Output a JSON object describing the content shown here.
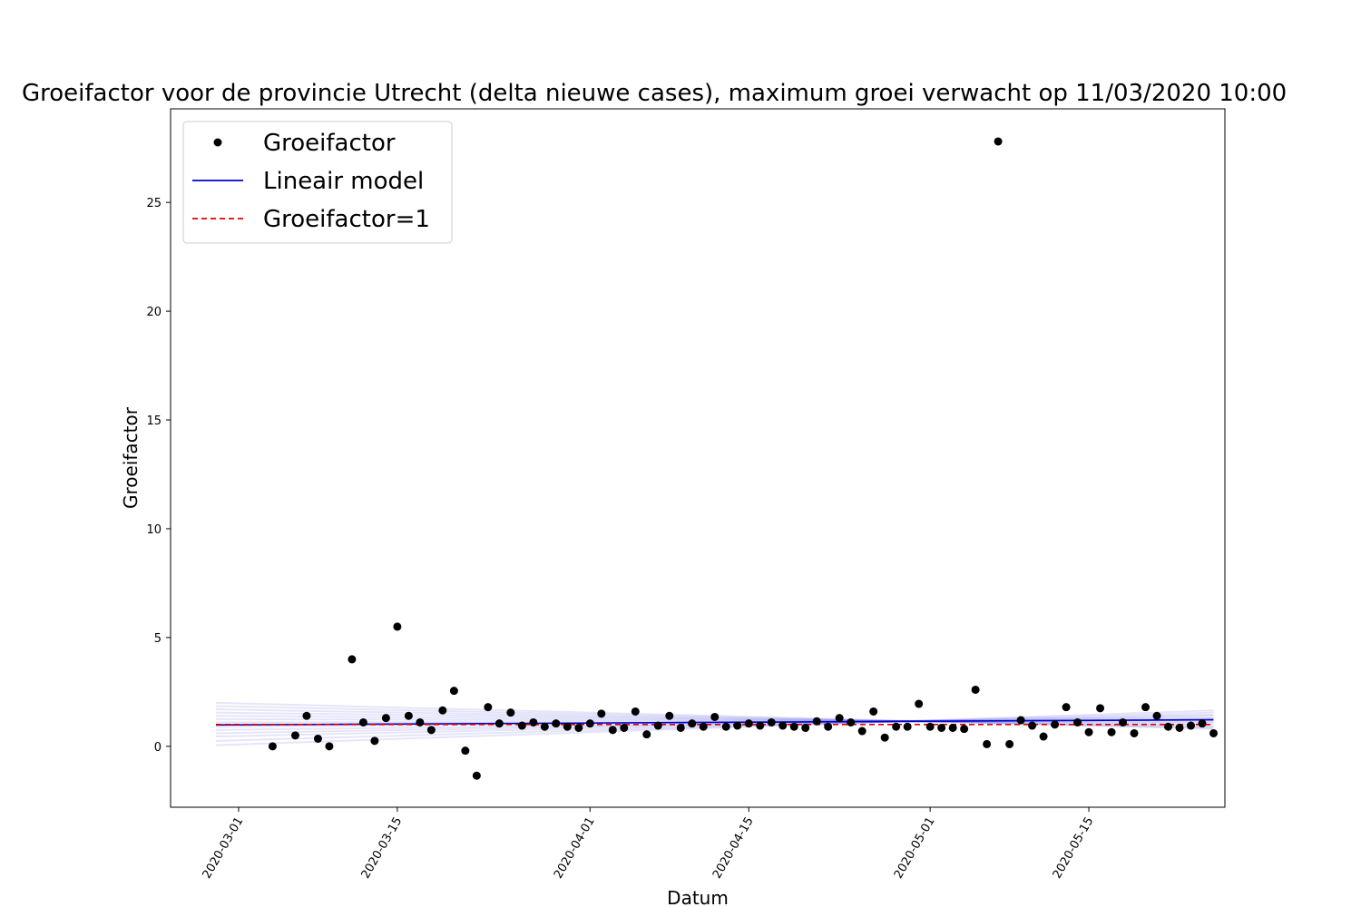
{
  "chart_data": {
    "type": "scatter",
    "title": "Groeifactor voor de provincie Utrecht (delta nieuwe cases), maximum groei verwacht op 11/03/2020 10:00",
    "xlabel": "Datum",
    "ylabel": "Groeifactor",
    "xlim": [
      "2020-02-24",
      "2020-05-27"
    ],
    "ylim": [
      -2.8,
      29.3
    ],
    "xticks": [
      "2020-03-01",
      "2020-03-15",
      "2020-04-01",
      "2020-04-15",
      "2020-05-01",
      "2020-05-15"
    ],
    "yticks": [
      0,
      5,
      10,
      15,
      20,
      25
    ],
    "grid": false,
    "legend": {
      "position": "top-left",
      "entries": [
        {
          "label": "Groeifactor",
          "style": "marker",
          "color": "#000000"
        },
        {
          "label": "Lineair model",
          "style": "solid",
          "color": "#0000cc"
        },
        {
          "label": "Groeifactor=1",
          "style": "dashed",
          "color": "#e00000"
        }
      ]
    },
    "series": [
      {
        "name": "Groeifactor",
        "kind": "points",
        "color": "#000000",
        "x": [
          "2020-03-04",
          "2020-03-06",
          "2020-03-07",
          "2020-03-08",
          "2020-03-09",
          "2020-03-11",
          "2020-03-12",
          "2020-03-13",
          "2020-03-14",
          "2020-03-15",
          "2020-03-16",
          "2020-03-17",
          "2020-03-18",
          "2020-03-19",
          "2020-03-20",
          "2020-03-21",
          "2020-03-22",
          "2020-03-23",
          "2020-03-24",
          "2020-03-25",
          "2020-03-26",
          "2020-03-27",
          "2020-03-28",
          "2020-03-29",
          "2020-03-30",
          "2020-03-31",
          "2020-04-01",
          "2020-04-02",
          "2020-04-03",
          "2020-04-04",
          "2020-04-05",
          "2020-04-06",
          "2020-04-07",
          "2020-04-08",
          "2020-04-09",
          "2020-04-10",
          "2020-04-11",
          "2020-04-12",
          "2020-04-13",
          "2020-04-14",
          "2020-04-15",
          "2020-04-16",
          "2020-04-17",
          "2020-04-18",
          "2020-04-19",
          "2020-04-20",
          "2020-04-21",
          "2020-04-22",
          "2020-04-23",
          "2020-04-24",
          "2020-04-25",
          "2020-04-26",
          "2020-04-27",
          "2020-04-28",
          "2020-04-29",
          "2020-04-30",
          "2020-05-01",
          "2020-05-02",
          "2020-05-03",
          "2020-05-04",
          "2020-05-05",
          "2020-05-06",
          "2020-05-07",
          "2020-05-08",
          "2020-05-09",
          "2020-05-10",
          "2020-05-11",
          "2020-05-12",
          "2020-05-13",
          "2020-05-14",
          "2020-05-15",
          "2020-05-16",
          "2020-05-17",
          "2020-05-18",
          "2020-05-19",
          "2020-05-20",
          "2020-05-21",
          "2020-05-22",
          "2020-05-23",
          "2020-05-24",
          "2020-05-25",
          "2020-05-26"
        ],
        "y": [
          0.0,
          0.5,
          1.4,
          0.35,
          0.0,
          4.0,
          1.1,
          0.25,
          1.3,
          5.5,
          1.4,
          1.1,
          0.75,
          1.65,
          2.55,
          -0.2,
          -1.35,
          1.8,
          1.05,
          1.55,
          0.95,
          1.1,
          0.9,
          1.05,
          0.9,
          0.85,
          1.05,
          1.5,
          0.75,
          0.85,
          1.6,
          0.55,
          0.95,
          1.4,
          0.85,
          1.05,
          0.9,
          1.35,
          0.9,
          0.95,
          1.05,
          0.95,
          1.1,
          0.95,
          0.9,
          0.85,
          1.15,
          0.9,
          1.3,
          1.1,
          0.7,
          1.6,
          0.4,
          0.9,
          0.9,
          1.95,
          0.9,
          0.85,
          0.85,
          0.8,
          2.6,
          0.1,
          27.8,
          0.1,
          1.2,
          0.95,
          0.45,
          1.0,
          1.8,
          1.1,
          0.65,
          1.75,
          0.65,
          1.1,
          0.6,
          1.8,
          1.4,
          0.9,
          0.85,
          0.95,
          1.05,
          0.6
        ]
      },
      {
        "name": "Lineair model",
        "kind": "line",
        "color": "#0000cc",
        "x": [
          "2020-02-28",
          "2020-05-26"
        ],
        "y": [
          0.98,
          1.22
        ]
      },
      {
        "name": "Groeifactor=1",
        "kind": "dashed-line",
        "color": "#e00000",
        "x": [
          "2020-02-28",
          "2020-05-26"
        ],
        "y": [
          1.0,
          1.0
        ]
      }
    ],
    "uncertainty_band": {
      "color": "#0000cc",
      "x": [
        "2020-02-28",
        "2020-05-26"
      ],
      "intercepts": [
        0.05,
        0.25,
        0.45,
        0.6,
        0.75,
        0.9,
        1.0,
        1.1,
        1.25,
        1.4,
        1.55,
        1.7,
        1.85,
        2.0
      ],
      "ends": [
        1.65,
        1.55,
        1.45,
        1.4,
        1.3,
        1.28,
        1.22,
        1.18,
        1.12,
        1.05,
        0.98,
        0.9,
        0.85,
        0.8
      ]
    }
  }
}
